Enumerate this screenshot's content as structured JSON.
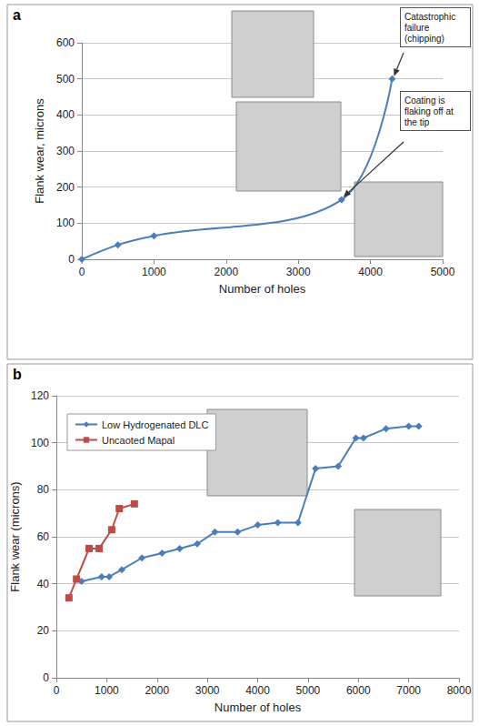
{
  "chart_data": [
    {
      "panel": "a",
      "type": "line",
      "x_label": "Number of holes",
      "y_label": "Flank wear, microns",
      "x": [
        0,
        500,
        1000,
        3600,
        4300
      ],
      "values": [
        0,
        40,
        65,
        165,
        500
      ],
      "color": "#4a7ebb",
      "marker": "diamond",
      "line_style": "smooth",
      "xlim": [
        0,
        5000
      ],
      "xticks": [
        0,
        1000,
        2000,
        3000,
        4000,
        5000
      ],
      "ylim": [
        0,
        600
      ],
      "yticks": [
        0,
        100,
        200,
        300,
        400,
        500,
        600
      ],
      "grid": true,
      "annotations": [
        {
          "text": "Catastrophic failure (chipping)",
          "x": 4300,
          "y": 500
        },
        {
          "text": "Coating is flaking off at the tip",
          "x": 3600,
          "y": 165
        }
      ]
    },
    {
      "panel": "b",
      "type": "line",
      "x_label": "Number of holes",
      "y_label": "Flank wear (microns)",
      "series": [
        {
          "name": "Low Hydrogenated DLC",
          "color": "#4a7ebb",
          "marker": "diamond",
          "line_style": "solid",
          "x": [
            500,
            900,
            1050,
            1300,
            1700,
            2100,
            2450,
            2800,
            3150,
            3600,
            4000,
            4400,
            4800,
            5150,
            5600,
            5950,
            6100,
            6550,
            7000,
            7200
          ],
          "values": [
            41,
            43,
            43,
            46,
            51,
            53,
            55,
            57,
            62,
            62,
            65,
            66,
            66,
            89,
            90,
            102,
            102,
            106,
            107,
            107
          ]
        },
        {
          "name": "Uncaoted Mapal",
          "color": "#be4b48",
          "marker": "square",
          "line_style": "solid",
          "x": [
            250,
            400,
            650,
            850,
            1100,
            1250,
            1550
          ],
          "values": [
            34,
            42,
            55,
            55,
            63,
            72,
            74
          ]
        }
      ],
      "xlim": [
        0,
        8000
      ],
      "xticks": [
        0,
        1000,
        2000,
        3000,
        4000,
        5000,
        6000,
        7000,
        8000
      ],
      "ylim": [
        0,
        120
      ],
      "yticks": [
        0,
        20,
        40,
        60,
        80,
        100,
        120
      ],
      "grid": true,
      "legend": "upper left"
    }
  ]
}
